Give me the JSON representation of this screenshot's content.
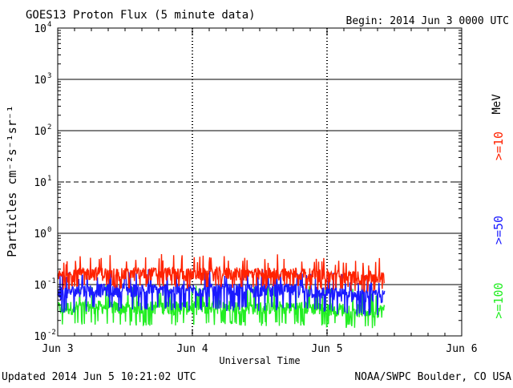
{
  "header": {
    "title": "GOES13 Proton Flux (5 minute data)",
    "begin": "Begin: 2014 Jun 3 0000 UTC"
  },
  "footer": {
    "updated": "Updated 2014 Jun  5 10:21:02 UTC",
    "source": "NOAA/SWPC Boulder, CO USA"
  },
  "legend": {
    "unit": "MeV",
    "items": [
      {
        "label": ">=10",
        "color": "#ff2200"
      },
      {
        "label": ">=50",
        "color": "#1a1aff"
      },
      {
        "label": ">=100",
        "color": "#22ee22"
      }
    ]
  },
  "chart_data": {
    "type": "line",
    "title": "GOES13 Proton Flux (5 minute data)",
    "xlabel": "Universal Time",
    "ylabel": "Particles cm⁻²s⁻¹sr⁻¹",
    "ylog": true,
    "ylim": [
      0.01,
      10000
    ],
    "yticks": [
      {
        "base": "10",
        "exp": "4"
      },
      {
        "base": "10",
        "exp": "3"
      },
      {
        "base": "10",
        "exp": "2"
      },
      {
        "base": "10",
        "exp": "1"
      },
      {
        "base": "10",
        "exp": "0"
      },
      {
        "base": "10",
        "exp": "-1"
      },
      {
        "base": "10",
        "exp": "-2"
      }
    ],
    "xticks": [
      "Jun 3",
      "Jun 4",
      "Jun 5",
      "Jun 6"
    ],
    "xlim_days": [
      0,
      3
    ],
    "data_end_day": 2.43,
    "grid": true,
    "dashed_gridline": 10,
    "series": [
      {
        "name": ">=10",
        "color": "#ff2200",
        "x": [
          0,
          0.25,
          0.5,
          0.75,
          1.0,
          1.25,
          1.5,
          1.75,
          2.0,
          2.25,
          2.43
        ],
        "y": [
          0.15,
          0.17,
          0.16,
          0.17,
          0.16,
          0.17,
          0.16,
          0.17,
          0.15,
          0.14,
          0.14
        ]
      },
      {
        "name": ">=50",
        "color": "#1a1aff",
        "x": [
          0,
          0.25,
          0.5,
          0.75,
          1.0,
          1.25,
          1.5,
          1.75,
          2.0,
          2.25,
          2.43
        ],
        "y": [
          0.07,
          0.08,
          0.08,
          0.08,
          0.08,
          0.08,
          0.08,
          0.08,
          0.07,
          0.06,
          0.06
        ]
      },
      {
        "name": ">=100",
        "color": "#22ee22",
        "x": [
          0,
          0.25,
          0.5,
          0.75,
          1.0,
          1.25,
          1.5,
          1.75,
          2.0,
          2.25,
          2.43
        ],
        "y": [
          0.035,
          0.038,
          0.036,
          0.037,
          0.036,
          0.038,
          0.036,
          0.037,
          0.035,
          0.032,
          0.032
        ]
      }
    ]
  }
}
